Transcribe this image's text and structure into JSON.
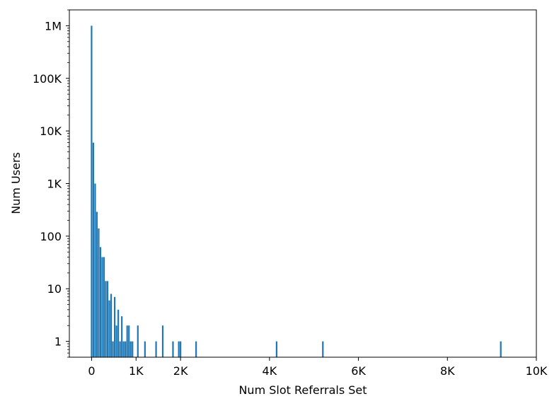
{
  "chart_data": {
    "type": "bar",
    "title": "",
    "xlabel": "Num Slot Referrals Set",
    "ylabel": "Num Users",
    "xlim": [
      -500,
      10000
    ],
    "ylim": [
      0.5,
      2000000
    ],
    "yscale": "log",
    "grid": false,
    "legend": "none",
    "color": "#1f77b4",
    "x_ticks": [
      {
        "value": 0,
        "label": "0"
      },
      {
        "value": 1000,
        "label": "1K"
      },
      {
        "value": 2000,
        "label": "2K"
      },
      {
        "value": 4000,
        "label": "4K"
      },
      {
        "value": 6000,
        "label": "6K"
      },
      {
        "value": 8000,
        "label": "8K"
      },
      {
        "value": 10000,
        "label": "10K"
      }
    ],
    "y_ticks": [
      {
        "value": 1,
        "label": "1"
      },
      {
        "value": 10,
        "label": "10"
      },
      {
        "value": 100,
        "label": "100"
      },
      {
        "value": 1000,
        "label": "1K"
      },
      {
        "value": 10000,
        "label": "10K"
      },
      {
        "value": 100000,
        "label": "100K"
      },
      {
        "value": 1000000,
        "label": "1M"
      }
    ],
    "x": [
      0,
      40,
      80,
      120,
      160,
      200,
      240,
      280,
      320,
      360,
      400,
      440,
      480,
      520,
      560,
      600,
      640,
      680,
      720,
      760,
      800,
      840,
      880,
      920,
      1040,
      1200,
      1450,
      1600,
      1830,
      1960,
      2000,
      2350,
      4160,
      5200,
      9200
    ],
    "values": [
      1000000,
      6000,
      1000,
      290,
      140,
      62,
      40,
      40,
      14,
      14,
      6,
      8,
      1,
      7,
      2,
      4,
      1,
      3,
      1,
      1,
      2,
      2,
      1,
      1,
      2,
      1,
      1,
      2,
      1,
      1,
      1,
      1,
      1,
      1,
      1
    ]
  }
}
